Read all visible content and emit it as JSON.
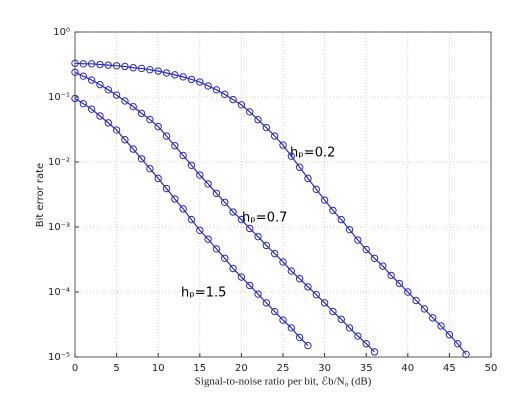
{
  "chart_data": {
    "type": "line",
    "xlabel": "Signal-to-noise ratio per bit, ℰb/N₀ (dB)",
    "ylabel": "Bit error rate",
    "xlim": [
      0,
      50
    ],
    "xticks": [
      0,
      5,
      10,
      15,
      20,
      25,
      30,
      35,
      40,
      45,
      50
    ],
    "ylim": [
      1e-05,
      1
    ],
    "log_y": true,
    "grid": true,
    "yticks": [
      {
        "value": 1e-05,
        "label": "10⁻⁵"
      },
      {
        "value": 0.0001,
        "label": "10⁻⁴"
      },
      {
        "value": 0.001,
        "label": "10⁻³"
      },
      {
        "value": 0.01,
        "label": "10⁻²"
      },
      {
        "value": 0.1,
        "label": "10⁻¹"
      },
      {
        "value": 1,
        "label": "10⁰"
      }
    ],
    "series": [
      {
        "name": "hₚ=0.2",
        "color": "#2a2ac0",
        "x": [
          0,
          1,
          2,
          3,
          4,
          5,
          6,
          7,
          8,
          9,
          10,
          11,
          12,
          13,
          14,
          15,
          16,
          17,
          18,
          19,
          20,
          21,
          22,
          23,
          24,
          25,
          26,
          27,
          28,
          29,
          30,
          31,
          32,
          33,
          34,
          35,
          36,
          37,
          38,
          39,
          40,
          41,
          42,
          43,
          44,
          45,
          46,
          47
        ],
        "values": [
          0.331,
          0.324,
          0.324,
          0.316,
          0.309,
          0.302,
          0.295,
          0.282,
          0.275,
          0.263,
          0.251,
          0.234,
          0.219,
          0.204,
          0.186,
          0.17,
          0.148,
          0.129,
          0.11,
          0.0912,
          0.0759,
          0.0589,
          0.0447,
          0.0339,
          0.0251,
          0.0182,
          0.0123,
          0.0083,
          0.0056,
          0.0038,
          0.0026,
          0.0018,
          0.0013,
          0.00091,
          0.00063,
          0.00045,
          0.00033,
          0.00025,
          0.00018,
          0.000135,
          0.0001,
          7.4e-05,
          5.5e-05,
          4e-05,
          3e-05,
          2.2e-05,
          1.6e-05,
          1.1e-05
        ]
      },
      {
        "name": "hₚ=0.7",
        "color": "#2a2ac0",
        "x": [
          0,
          1,
          2,
          3,
          4,
          5,
          6,
          7,
          8,
          9,
          10,
          11,
          12,
          13,
          14,
          15,
          16,
          17,
          18,
          19,
          20,
          21,
          22,
          23,
          24,
          25,
          26,
          27,
          28,
          29,
          30,
          31,
          32,
          33,
          34,
          35,
          36
        ],
        "values": [
          0.24,
          0.209,
          0.182,
          0.155,
          0.129,
          0.107,
          0.087,
          0.071,
          0.056,
          0.045,
          0.035,
          0.025,
          0.0178,
          0.0126,
          0.0089,
          0.0063,
          0.0046,
          0.0033,
          0.0024,
          0.0017,
          0.0013,
          0.00095,
          0.00071,
          0.00052,
          0.00039,
          0.00029,
          0.00021,
          0.00016,
          0.00012,
          9.1e-05,
          6.8e-05,
          5e-05,
          3.8e-05,
          2.8e-05,
          2.1e-05,
          1.6e-05,
          1.2e-05
        ]
      },
      {
        "name": "hₚ=1.5",
        "color": "#2a2ac0",
        "x": [
          0,
          1,
          2,
          3,
          4,
          5,
          6,
          7,
          8,
          9,
          10,
          11,
          12,
          13,
          14,
          15,
          16,
          17,
          18,
          19,
          20,
          21,
          22,
          23,
          24,
          25,
          26,
          27,
          28
        ],
        "values": [
          0.095,
          0.079,
          0.065,
          0.051,
          0.04,
          0.031,
          0.022,
          0.0158,
          0.0112,
          0.0079,
          0.0056,
          0.0039,
          0.0027,
          0.0019,
          0.0013,
          0.00089,
          0.00065,
          0.00046,
          0.00033,
          0.00023,
          0.00017,
          0.000126,
          9.3e-05,
          6.8e-05,
          5e-05,
          3.7e-05,
          2.8e-05,
          2e-05,
          1.5e-05
        ]
      }
    ]
  }
}
